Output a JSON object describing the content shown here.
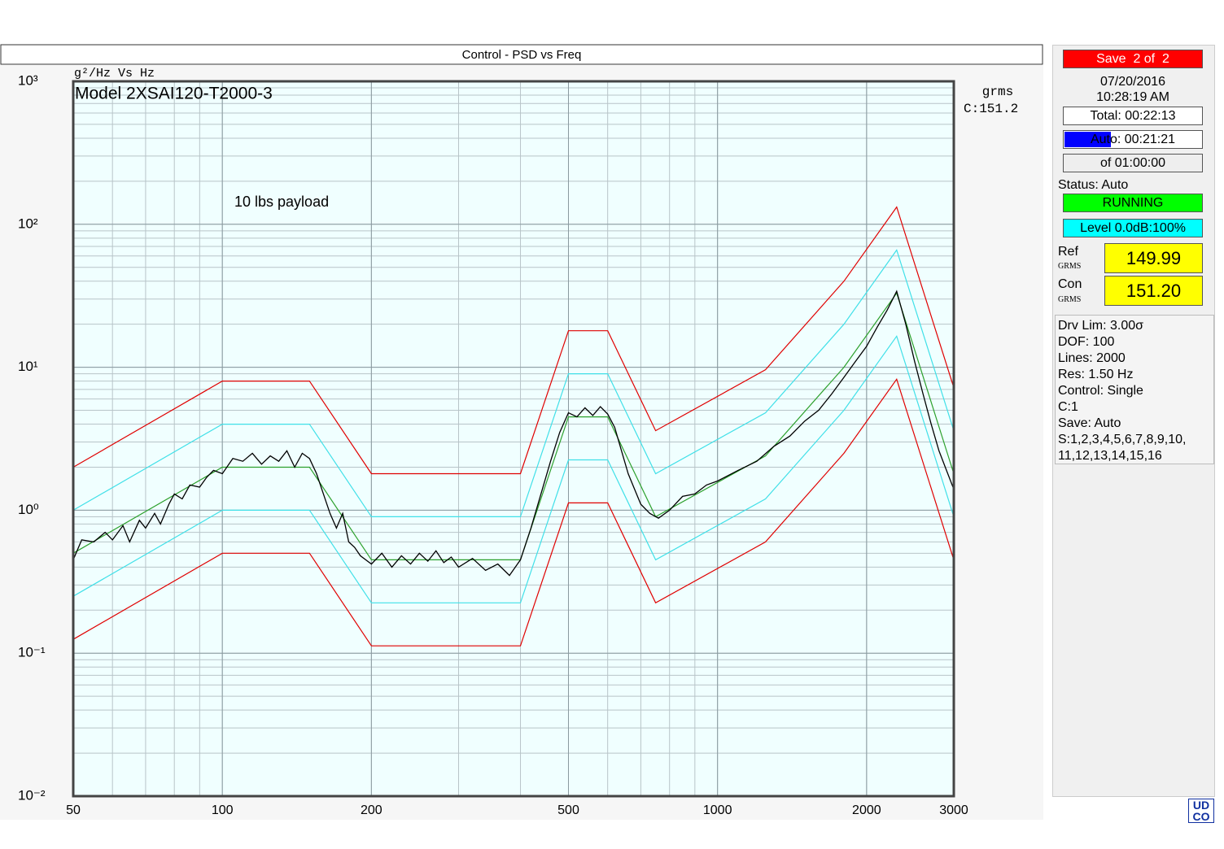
{
  "chart_data": {
    "type": "line",
    "title": "Control - PSD vs  Freq",
    "y_label": "g²/Hz Vs Hz",
    "subtitle": "Model 2XSAI120-T2000-3",
    "annotation": "10 lbs payload",
    "legend_title": "grms",
    "legend_entry": "C:151.2",
    "xscale": "log",
    "yscale": "log",
    "grid": true,
    "xlim": [
      50,
      3000
    ],
    "ylim": [
      0.01,
      1000
    ],
    "xticks": [
      50,
      100,
      200,
      500,
      1000,
      2000,
      3000
    ],
    "yticks": [
      {
        "value": 1000,
        "label": "10³"
      },
      {
        "value": 100,
        "label": "10²"
      },
      {
        "value": 10,
        "label": "10¹"
      },
      {
        "value": 1,
        "label": "10⁰"
      },
      {
        "value": 0.1,
        "label": "10⁻¹"
      },
      {
        "value": 0.01,
        "label": "10⁻²"
      }
    ],
    "x": [
      50,
      100,
      150,
      200,
      400,
      500,
      600,
      750,
      1250,
      1800,
      2300,
      3000
    ],
    "series": [
      {
        "color": "#e00000",
        "values": [
          2,
          8,
          8,
          1.8,
          1.8,
          18,
          18,
          3.6,
          9.6,
          40,
          132,
          7.2
        ]
      },
      {
        "color": "#40e0e8",
        "values": [
          1,
          4,
          4,
          0.9,
          0.9,
          9,
          9,
          1.8,
          4.8,
          20,
          66,
          3.6
        ]
      },
      {
        "color": "#2ca02c",
        "values": [
          0.5,
          2,
          2,
          0.45,
          0.45,
          4.5,
          4.5,
          0.9,
          2.4,
          10,
          33,
          1.8
        ]
      },
      {
        "color": "#40e0e8",
        "values": [
          0.25,
          1,
          1,
          0.225,
          0.225,
          2.25,
          2.25,
          0.45,
          1.2,
          5,
          16.5,
          0.9
        ]
      },
      {
        "color": "#e00000",
        "values": [
          0.125,
          0.5,
          0.5,
          0.1125,
          0.1125,
          1.125,
          1.125,
          0.225,
          0.6,
          2.5,
          8.25,
          0.45
        ]
      },
      {
        "color": "#000000",
        "x": [
          50,
          52,
          55,
          58,
          60,
          63,
          65,
          68,
          70,
          73,
          75,
          78,
          80,
          83,
          86,
          90,
          93,
          96,
          100,
          105,
          110,
          115,
          120,
          125,
          130,
          135,
          140,
          145,
          150,
          155,
          160,
          165,
          170,
          175,
          180,
          185,
          190,
          200,
          210,
          220,
          230,
          240,
          250,
          260,
          270,
          280,
          290,
          300,
          320,
          340,
          360,
          380,
          400,
          420,
          440,
          460,
          480,
          500,
          520,
          540,
          560,
          580,
          600,
          620,
          640,
          660,
          680,
          700,
          730,
          760,
          800,
          850,
          900,
          950,
          1000,
          1100,
          1200,
          1300,
          1400,
          1500,
          1600,
          1700,
          1800,
          1900,
          2000,
          2100,
          2200,
          2300,
          2400,
          2500,
          2600,
          2700,
          2800,
          2900,
          3000
        ],
        "values": [
          0.45,
          0.62,
          0.6,
          0.7,
          0.62,
          0.78,
          0.6,
          0.85,
          0.75,
          0.95,
          0.8,
          1.1,
          1.3,
          1.2,
          1.5,
          1.45,
          1.7,
          1.9,
          1.8,
          2.3,
          2.2,
          2.5,
          2.1,
          2.4,
          2.2,
          2.6,
          2.0,
          2.5,
          2.3,
          1.8,
          1.3,
          0.95,
          0.75,
          0.95,
          0.6,
          0.55,
          0.48,
          0.42,
          0.5,
          0.4,
          0.48,
          0.42,
          0.5,
          0.44,
          0.52,
          0.43,
          0.47,
          0.4,
          0.46,
          0.38,
          0.42,
          0.35,
          0.45,
          0.75,
          1.3,
          2.2,
          3.5,
          4.8,
          4.5,
          5.2,
          4.6,
          5.3,
          4.7,
          3.8,
          2.6,
          1.8,
          1.4,
          1.1,
          0.95,
          0.88,
          1.0,
          1.25,
          1.3,
          1.5,
          1.6,
          1.9,
          2.2,
          2.8,
          3.3,
          4.2,
          5.0,
          6.5,
          8.5,
          11,
          14,
          19,
          25,
          34,
          20,
          11,
          6.5,
          4.0,
          2.6,
          1.9,
          1.4
        ]
      }
    ]
  },
  "panel": {
    "save": "Save  2 of  2",
    "date": "07/20/2016",
    "time": "10:28:19 AM",
    "total": "Total: 00:22:13",
    "auto": "Auto: 00:21:21",
    "of": "of 01:00:00",
    "status": "Status: Auto",
    "state": "RUNNING",
    "level": "Level 0.0dB:100%",
    "ref_label": "Ref",
    "ref_unit": "GRMS",
    "ref_value": "149.99",
    "con_label": "Con",
    "con_unit": "GRMS",
    "con_value": "151.20",
    "info": [
      "Drv Lim: 3.00σ",
      "DOF: 100",
      "Lines: 2000",
      "Res: 1.50 Hz",
      "Control: Single",
      "C:1",
      "Save: Auto",
      "S:1,2,3,4,5,6,7,8,9,10,",
      "11,12,13,14,15,16"
    ]
  },
  "logo": [
    "UD",
    "CO"
  ]
}
